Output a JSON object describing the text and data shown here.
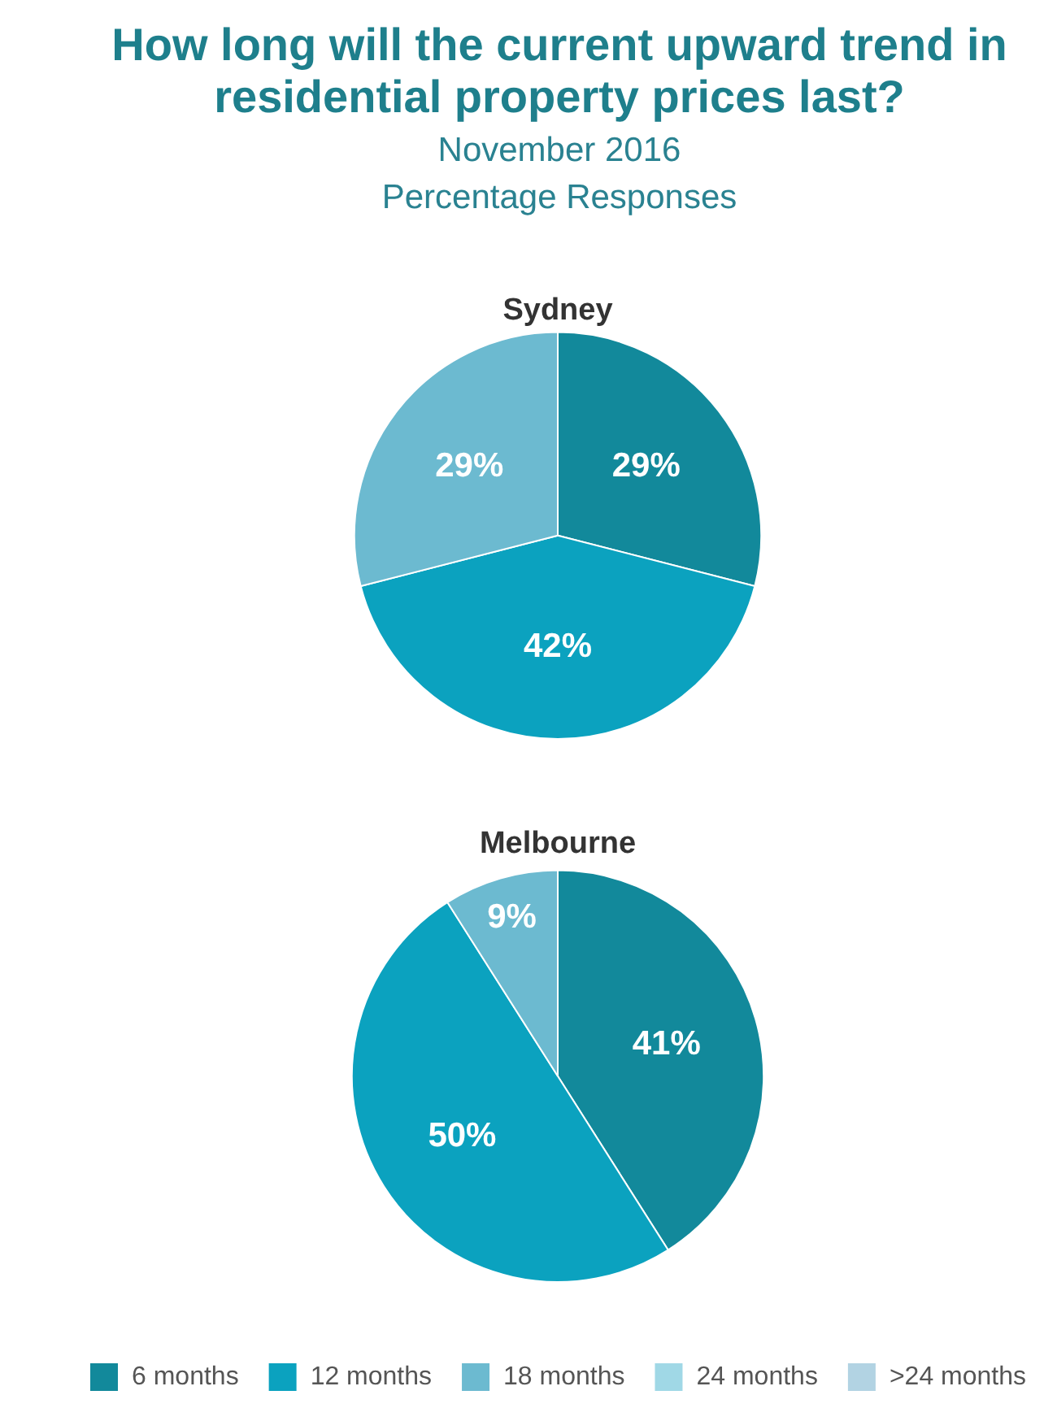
{
  "chart_data": {
    "type": "pie",
    "title": "How long will the current upward trend in residential property prices last?",
    "subtitle": "November 2016\nPercentage Responses",
    "categories": [
      "6 months",
      "12 months",
      "18 months",
      "24 months",
      ">24 months"
    ],
    "colors": [
      "#12899b",
      "#0ba2bf",
      "#6cbad0",
      "#a0d8e6",
      "#b2d3e3"
    ],
    "series": [
      {
        "name": "Sydney",
        "values": [
          29,
          42,
          29,
          0,
          0
        ],
        "value_labels": [
          "29%",
          "42%",
          "29%",
          null,
          null
        ]
      },
      {
        "name": "Melbourne",
        "values": [
          41,
          50,
          9,
          0,
          0
        ],
        "value_labels": [
          "41%",
          "50%",
          "9%",
          null,
          null
        ]
      }
    ],
    "legend": "bottom"
  }
}
